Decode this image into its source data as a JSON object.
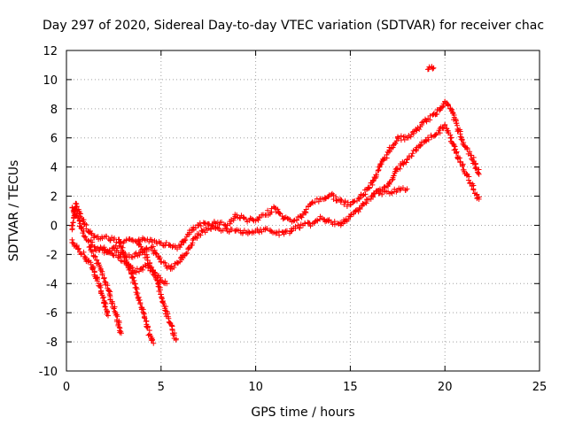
{
  "chart_data": {
    "type": "scatter",
    "title": "Day 297 of 2020, Sidereal Day-to-day VTEC variation (SDTVAR) for receiver chac",
    "xlabel": "GPS time / hours",
    "ylabel": "SDTVAR / TECUs",
    "xlim": [
      0,
      25
    ],
    "ylim": [
      -10,
      12
    ],
    "xticks": [
      0,
      5,
      10,
      15,
      20,
      25
    ],
    "yticks": [
      -10,
      -8,
      -6,
      -4,
      -2,
      0,
      2,
      4,
      6,
      8,
      10,
      12
    ],
    "grid": true,
    "marker": "+",
    "color": "#ff0000",
    "series": [
      {
        "name": "main-upper",
        "x": [
          0.3,
          0.5,
          0.8,
          1.2,
          1.6,
          2.0,
          2.5,
          3.0,
          3.5,
          4.0,
          4.5,
          5.0,
          5.5,
          6.0,
          6.5,
          7.0,
          7.5,
          8.0,
          8.5,
          9.0,
          9.5,
          10.0,
          10.5,
          11.0,
          11.5,
          12.0,
          12.5,
          13.0,
          13.5,
          14.0,
          14.5,
          15.0,
          15.5,
          16.0,
          16.5,
          17.0,
          17.5,
          18.0,
          18.5,
          19.0,
          19.5,
          20.0,
          20.3,
          20.6,
          21.0,
          21.4,
          21.8
        ],
        "y": [
          -0.3,
          1.5,
          0.5,
          -0.5,
          -0.8,
          -0.8,
          -1.0,
          -1.2,
          -1.0,
          -1.0,
          -1.0,
          -1.2,
          -1.4,
          -1.5,
          -0.5,
          0.0,
          0.1,
          0.2,
          0.0,
          0.7,
          0.4,
          0.3,
          0.7,
          1.2,
          0.5,
          0.3,
          0.7,
          1.6,
          1.8,
          2.1,
          1.6,
          1.4,
          1.9,
          2.6,
          3.8,
          5.0,
          6.0,
          6.0,
          6.5,
          7.2,
          7.6,
          8.5,
          8.0,
          7.0,
          5.5,
          4.8,
          3.5
        ]
      },
      {
        "name": "main-lower",
        "x": [
          0.3,
          0.6,
          1.0,
          1.5,
          2.0,
          2.5,
          3.0,
          3.5,
          4.0,
          4.5,
          5.0,
          5.5,
          6.0,
          6.5,
          7.0,
          7.5,
          8.0,
          8.5,
          9.0,
          9.5,
          10.0,
          10.5,
          11.0,
          11.5,
          12.0,
          12.5,
          13.0,
          13.5,
          14.0,
          14.5,
          15.0,
          15.5,
          16.0,
          16.5,
          17.0,
          17.5,
          18.0,
          18.5,
          19.0,
          19.5,
          20.0,
          20.3,
          20.6,
          21.0,
          21.5,
          21.8
        ],
        "y": [
          1.2,
          0.5,
          -0.8,
          -1.5,
          -1.9,
          -1.5,
          -2.0,
          -2.2,
          -1.8,
          -1.5,
          -2.5,
          -3.0,
          -2.5,
          -1.5,
          -0.6,
          -0.2,
          -0.2,
          -0.4,
          -0.3,
          -0.5,
          -0.4,
          -0.3,
          -0.5,
          -0.6,
          -0.2,
          0.0,
          0.1,
          0.5,
          0.2,
          0.0,
          0.6,
          1.2,
          1.8,
          2.4,
          2.7,
          3.9,
          4.5,
          5.2,
          5.8,
          6.2,
          6.9,
          6.0,
          5.0,
          3.8,
          2.5,
          1.8
        ]
      },
      {
        "name": "descent-1",
        "x": [
          0.3,
          0.6,
          1.0,
          1.3,
          1.6,
          1.9,
          2.1,
          2.2
        ],
        "y": [
          -1.0,
          -1.6,
          -2.2,
          -2.7,
          -3.6,
          -4.8,
          -5.8,
          -6.2
        ]
      },
      {
        "name": "descent-2",
        "x": [
          1.2,
          1.6,
          2.0,
          2.3,
          2.6,
          2.8,
          2.9
        ],
        "y": [
          -1.5,
          -2.4,
          -3.6,
          -4.8,
          -6.0,
          -7.0,
          -7.4
        ]
      },
      {
        "name": "descent-3",
        "x": [
          2.8,
          3.2,
          3.6,
          3.9,
          4.2,
          4.4,
          4.6
        ],
        "y": [
          -1.2,
          -2.6,
          -4.0,
          -5.4,
          -6.6,
          -7.5,
          -8.1
        ]
      },
      {
        "name": "descent-4",
        "x": [
          3.8,
          4.3,
          4.8,
          5.1,
          5.4,
          5.6,
          5.8
        ],
        "y": [
          -1.2,
          -2.4,
          -3.8,
          -5.2,
          -6.4,
          -7.2,
          -7.8
        ]
      },
      {
        "name": "early-dip",
        "x": [
          1.8,
          2.3,
          2.8,
          3.3,
          3.6,
          3.9,
          4.2,
          4.6,
          5.0,
          5.3
        ],
        "y": [
          -1.5,
          -1.9,
          -2.2,
          -2.7,
          -3.2,
          -3.0,
          -2.8,
          -3.2,
          -3.8,
          -4.0
        ]
      },
      {
        "name": "late-branch",
        "x": [
          16.5,
          17.0,
          17.5,
          18.0
        ],
        "y": [
          2.2,
          2.3,
          2.4,
          2.5
        ]
      },
      {
        "name": "isolated",
        "x": [
          19.1,
          19.3,
          19.4
        ],
        "y": [
          10.7,
          10.9,
          10.8
        ]
      }
    ]
  }
}
